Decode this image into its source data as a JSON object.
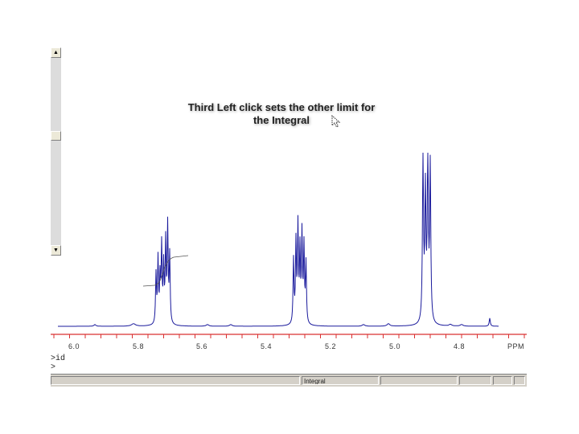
{
  "caption": {
    "line1": "Third Left click sets the other limit for",
    "line2": "the Integral"
  },
  "scrollbar": {
    "up_icon": "triangle-up-icon",
    "down_icon": "triangle-down-icon",
    "up_glyph": "▲",
    "down_glyph": "▼"
  },
  "axis": {
    "ticks": [
      "6.0",
      "5.8",
      "5.6",
      "5.4",
      "5.2",
      "5.0",
      "4.8"
    ],
    "tick_labels_shown": [
      "6.0",
      "5.8",
      "5.6",
      "5.4",
      "5.2",
      "5.0",
      "4.8"
    ],
    "unit": "PPM",
    "axis_color": "#d93030"
  },
  "spectrum": {
    "trace_color": "#1a1a9c",
    "integral_color": "#555555"
  },
  "command_line": {
    "line1": ">id",
    "line2": ">"
  },
  "status_bar": {
    "panes": [
      "",
      "",
      "Integral",
      "",
      "",
      "",
      ""
    ]
  }
}
